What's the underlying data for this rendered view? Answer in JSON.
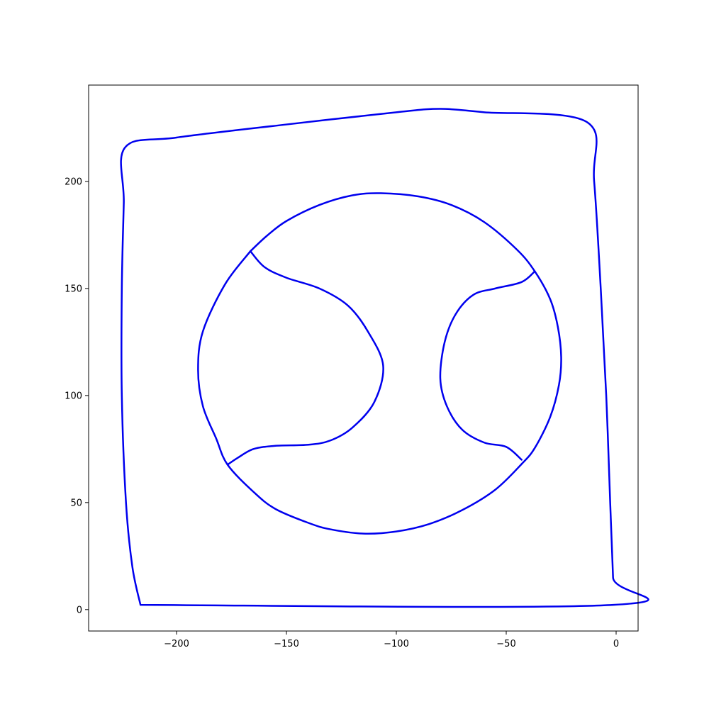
{
  "chart_data": {
    "type": "line",
    "title": "",
    "xlabel": "",
    "ylabel": "",
    "xlim": [
      -240,
      10
    ],
    "ylim": [
      -10,
      245
    ],
    "grid": false,
    "legend": "none",
    "x_ticks": [
      -200,
      -150,
      -100,
      -50,
      0
    ],
    "y_ticks": [
      0,
      50,
      100,
      150,
      200
    ],
    "x_tick_labels": [
      "−200",
      "−150",
      "−100",
      "−50",
      "0"
    ],
    "y_tick_labels": [
      "0",
      "50",
      "100",
      "150",
      "200"
    ],
    "color": "#0000ee",
    "series": [
      {
        "points": [
          [
            -216.4,
            2.2
          ],
          [
            -220.1,
            20.0
          ],
          [
            -223.0,
            50.0
          ],
          [
            -224.9,
            100.0
          ],
          [
            -224.9,
            150.0
          ],
          [
            -224.0,
            190.0
          ],
          [
            -223.4,
            215.9
          ],
          [
            -200.0,
            220.5
          ],
          [
            -150.0,
            226.6
          ],
          [
            -100.0,
            232.3
          ],
          [
            -80.0,
            233.9
          ],
          [
            -60.0,
            232.3
          ],
          [
            -13.4,
            227.8
          ],
          [
            -10.0,
            200.0
          ],
          [
            -7.0,
            150.0
          ],
          [
            -4.5,
            100.0
          ],
          [
            -2.7,
            50.0
          ],
          [
            -1.4,
            15.0
          ],
          [
            -1.3,
            2.2
          ],
          [
            -216.4,
            2.2
          ]
        ]
      },
      {
        "points": [
          [
            -166.4,
            167.4
          ],
          [
            -177.9,
            152.0
          ],
          [
            -188.0,
            130.0
          ],
          [
            -190.2,
            112.0
          ],
          [
            -188.0,
            95.0
          ],
          [
            -182.0,
            80.0
          ],
          [
            -176.8,
            67.7
          ],
          [
            -165.0,
            55.0
          ],
          [
            -155.0,
            47.0
          ],
          [
            -140.0,
            40.5
          ],
          [
            -130.0,
            37.5
          ],
          [
            -115.0,
            35.5
          ],
          [
            -100.0,
            36.5
          ],
          [
            -85.0,
            40.0
          ],
          [
            -70.0,
            46.5
          ],
          [
            -55.0,
            56.0
          ],
          [
            -43.0,
            68.0
          ],
          [
            -37.0,
            75.5
          ],
          [
            -30.0,
            90.0
          ],
          [
            -26.0,
            105.0
          ],
          [
            -25.0,
            118.0
          ],
          [
            -26.5,
            132.0
          ],
          [
            -30.0,
            145.0
          ],
          [
            -37.0,
            158.0
          ],
          [
            -45.0,
            168.0
          ],
          [
            -60.0,
            181.0
          ],
          [
            -75.0,
            189.0
          ],
          [
            -90.0,
            193.0
          ],
          [
            -107.0,
            194.5
          ],
          [
            -120.0,
            193.5
          ],
          [
            -135.0,
            189.0
          ],
          [
            -150.0,
            181.5
          ],
          [
            -159.0,
            174.5
          ],
          [
            -166.4,
            167.4
          ]
        ]
      },
      {
        "points": [
          [
            -166.4,
            167.4
          ],
          [
            -160.0,
            160.0
          ],
          [
            -150.0,
            155.0
          ],
          [
            -135.0,
            150.0
          ],
          [
            -122.0,
            142.0
          ],
          [
            -113.0,
            130.0
          ],
          [
            -106.0,
            114.0
          ],
          [
            -110.0,
            97.0
          ],
          [
            -120.0,
            85.0
          ],
          [
            -130.0,
            79.0
          ],
          [
            -140.0,
            77.0
          ],
          [
            -155.0,
            76.5
          ],
          [
            -165.0,
            75.0
          ],
          [
            -172.0,
            71.0
          ],
          [
            -176.8,
            67.7
          ]
        ]
      },
      {
        "points": [
          [
            -37.0,
            158.0
          ],
          [
            -43.0,
            153.0
          ],
          [
            -55.0,
            150.0
          ],
          [
            -65.0,
            147.0
          ],
          [
            -73.0,
            138.0
          ],
          [
            -78.0,
            125.0
          ],
          [
            -80.0,
            108.0
          ],
          [
            -77.0,
            95.0
          ],
          [
            -70.0,
            84.0
          ],
          [
            -60.0,
            78.0
          ],
          [
            -50.0,
            76.0
          ],
          [
            -43.0,
            70.0
          ]
        ]
      }
    ]
  }
}
